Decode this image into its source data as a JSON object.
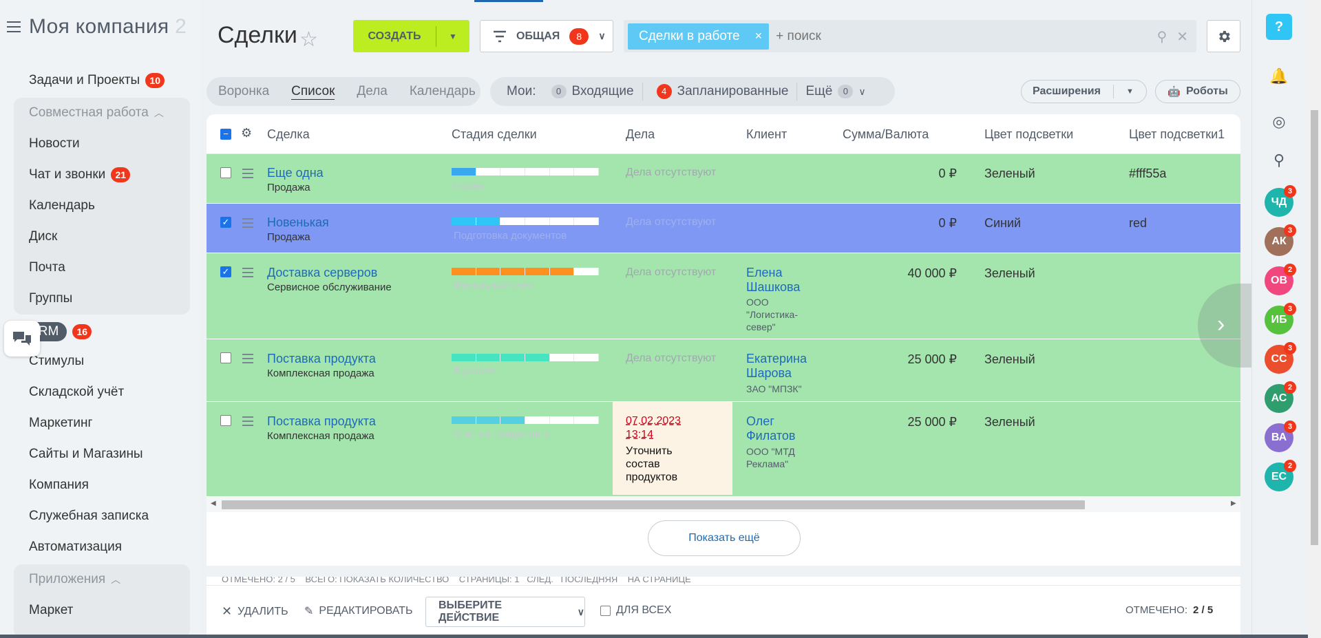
{
  "sidebar": {
    "logo": "Моя компания",
    "logo_fade": "2",
    "items": [
      {
        "label": "Задачи и Проекты",
        "count": "10"
      },
      {
        "label": "Совместная работа"
      },
      {
        "label": "Новости"
      },
      {
        "label": "Чат и звонки",
        "count": "21"
      },
      {
        "label": "Календарь"
      },
      {
        "label": "Диск"
      },
      {
        "label": "Почта"
      },
      {
        "label": "Группы"
      },
      {
        "label": "CRM",
        "count": "16"
      },
      {
        "label": "Стимулы"
      },
      {
        "label": "Складской учёт"
      },
      {
        "label": "Маркетинг"
      },
      {
        "label": "Сайты и Магазины"
      },
      {
        "label": "Компания"
      },
      {
        "label": "Служебная записка"
      },
      {
        "label": "Автоматизация"
      },
      {
        "label": "Приложения"
      },
      {
        "label": "Маркет"
      }
    ]
  },
  "header": {
    "title": "Сделки",
    "create_label": "СОЗДАТЬ",
    "filter_label": "ОБЩАЯ",
    "filter_count": "8",
    "search_tag": "Сделки в работе",
    "search_placeholder": "+ поиск"
  },
  "view_tabs": [
    "Воронка",
    "Список",
    "Дела",
    "Календарь"
  ],
  "mine": {
    "label": "Мои:",
    "incoming_count": "0",
    "incoming_label": "Входящие",
    "planned_count": "4",
    "planned_label": "Запланированные",
    "more_label": "Ещё",
    "more_count": "0"
  },
  "extensions_label": "Расширения",
  "robots_label": "Роботы",
  "grid": {
    "columns": [
      "Сделка",
      "Стадия сделки",
      "Дела",
      "Клиент",
      "Сумма/Валюта",
      "Цвет подсветки",
      "Цвет подсветки1"
    ],
    "rows": [
      {
        "title": "Еще одна",
        "sub": "Продажа",
        "stage": "Новая",
        "stage_fill": 0.16,
        "stage_color": "#39a8ef",
        "activity": "Дела отсутствуют",
        "client": "",
        "company": "",
        "sum": "0 ₽",
        "color": "Зеленый",
        "color1": "#fff55a",
        "checked": false,
        "highlight": "green"
      },
      {
        "title": "Новенькая",
        "sub": "Продажа",
        "stage": "Подготовка документов",
        "stage_fill": 0.33,
        "stage_color": "#2fc6f6",
        "activity": "Дела отсутствуют",
        "client": "",
        "company": "",
        "sum": "0 ₽",
        "color": "Синий",
        "color1": "red",
        "checked": true,
        "highlight": "blue"
      },
      {
        "title": "Доставка серверов",
        "sub": "Сервисное обслуживание",
        "stage": "Финальный счёт",
        "stage_fill": 0.83,
        "stage_color": "#ff8f1f",
        "activity": "Дела отсутствуют",
        "client": "Елена Шашкова",
        "company": "ООО \"Логистика-север\"",
        "sum": "40 000 ₽",
        "color": "Зеленый",
        "color1": "",
        "checked": true,
        "highlight": "green"
      },
      {
        "title": "Поставка продукта",
        "sub": "Комплексная продажа",
        "stage": "В работе",
        "stage_fill": 0.66,
        "stage_color": "#47e4c2",
        "activity": "Дела отсутствуют",
        "client": "Екатерина Шарова",
        "company": "ЗАО \"МПЗК\"",
        "sum": "25 000 ₽",
        "color": "Зеленый",
        "color1": "",
        "checked": false,
        "highlight": "green"
      },
      {
        "title": "Поставка продукта",
        "sub": "Комплексная продажа",
        "stage": "Счёт на предоплату",
        "stage_fill": 0.5,
        "stage_color": "#55d0e0",
        "activity_date": "07.02.2023 13:14",
        "activity_text": "Уточнить состав продуктов",
        "client": "Олег Филатов",
        "company": "ООО \"МТД Реклама\"",
        "sum": "25 000 ₽",
        "color": "Зеленый",
        "color1": "",
        "checked": false,
        "highlight": "green"
      }
    ]
  },
  "show_more": "Показать ещё",
  "footer_strip": "ОТМЕЧЕНО: 2 / 5    ВСЕГО: ПОКАЗАТЬ КОЛИЧЕСТВО    СТРАНИЦЫ: 1   СЛЕД.   ПОСЛЕДНЯЯ    НА СТРАНИЦЕ",
  "action_bar": {
    "delete": "УДАЛИТЬ",
    "edit": "РЕДАКТИРОВАТЬ",
    "select_action": "ВЫБЕРИТЕ ДЕЙСТВИЕ",
    "for_all": "ДЛЯ ВСЕХ",
    "checked_label": "ОТМЕЧЕНО:",
    "checked_value": "2 / 5"
  },
  "right_rail": {
    "help": "?",
    "avatars": [
      {
        "initials": "ЧД",
        "badge": "3",
        "color": "#1fb5ac"
      },
      {
        "initials": "АК",
        "badge": "3",
        "color": "#a0705a"
      },
      {
        "initials": "ОВ",
        "badge": "2",
        "color": "#f0487e"
      },
      {
        "initials": "ИБ",
        "badge": "3",
        "color": "#55c13d"
      },
      {
        "initials": "СС",
        "badge": "3",
        "color": "#ea4e2c"
      },
      {
        "initials": "АС",
        "badge": "2",
        "color": "#2f9e6e"
      },
      {
        "initials": "ВА",
        "badge": "3",
        "color": "#8a6fd0"
      },
      {
        "initials": "ЕС",
        "badge": "2",
        "color": "#1fb5ac"
      }
    ]
  },
  "colors": {
    "accent": "#bbed21",
    "row_green": "#a4e5ae",
    "row_blue": "#7f98f4",
    "link": "#1f6ab5",
    "counter": "#f1361b"
  }
}
